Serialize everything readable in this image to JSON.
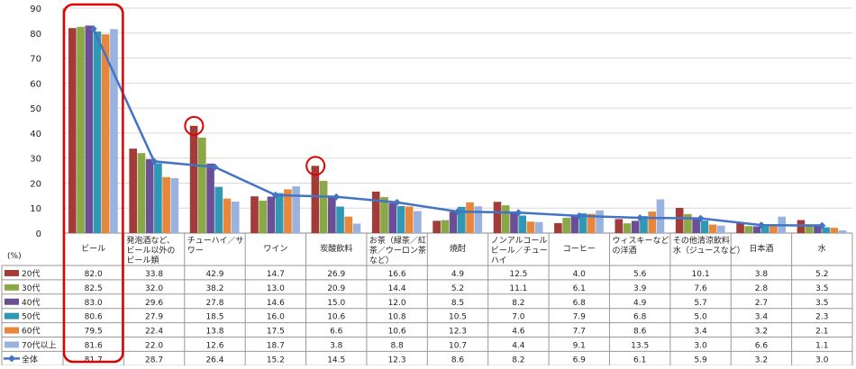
{
  "chart_data": {
    "type": "bar",
    "y_unit_label": "(%)",
    "ylim": [
      0,
      90
    ],
    "y_ticks": [
      "0",
      "10",
      "20",
      "30",
      "40",
      "50",
      "60",
      "70",
      "80",
      "90"
    ],
    "grid": true,
    "legend_placement": "left, in data table",
    "categories": [
      "ビール",
      "発泡酒など、ビール以外のビール類",
      "チューハイ／サワー",
      "ワイン",
      "炭酸飲料",
      "お茶（緑茶／紅茶／ウーロン茶など）",
      "焼酎",
      "ノンアルコールビール／チューハイ",
      "コーヒー",
      "ウィスキーなどの洋酒",
      "その他清涼飲料水（ジュースなど）",
      "日本酒",
      "水"
    ],
    "category_lines": [
      [
        "ビール"
      ],
      [
        "発泡酒など、",
        "ビール以外の",
        "ビール類"
      ],
      [
        "チューハイ／サ",
        "ワー"
      ],
      [
        "ワイン"
      ],
      [
        "炭酸飲料"
      ],
      [
        "お茶（緑茶／紅",
        "茶／ウーロン茶",
        "など）"
      ],
      [
        "焼酎"
      ],
      [
        "ノンアルコール",
        "ビール／チュー",
        "ハイ"
      ],
      [
        "コーヒー"
      ],
      [
        "ウィスキーなど",
        "の洋酒"
      ],
      [
        "その他清涼飲料",
        "水（ジュースなど）"
      ],
      [
        "日本酒"
      ],
      [
        "水"
      ]
    ],
    "series": [
      {
        "name": "20代",
        "color": "#a33b38",
        "values": [
          82.0,
          33.8,
          42.9,
          14.7,
          26.9,
          16.6,
          4.9,
          12.5,
          4.0,
          5.6,
          10.1,
          3.8,
          5.2
        ],
        "labels": [
          "82.0",
          "33.8",
          "42.9",
          "14.7",
          "26.9",
          "16.6",
          "4.9",
          "12.5",
          "4.0",
          "5.6",
          "10.1",
          "3.8",
          "5.2"
        ]
      },
      {
        "name": "30代",
        "color": "#8aa846",
        "values": [
          82.5,
          32.0,
          38.2,
          13.0,
          20.9,
          14.4,
          5.2,
          11.1,
          6.1,
          3.9,
          7.6,
          2.8,
          3.5
        ],
        "labels": [
          "82.5",
          "32.0",
          "38.2",
          "13.0",
          "20.9",
          "14.4",
          "5.2",
          "11.1",
          "6.1",
          "3.9",
          "7.6",
          "2.8",
          "3.5"
        ]
      },
      {
        "name": "40代",
        "color": "#6b4f96",
        "values": [
          83.0,
          29.6,
          27.8,
          14.6,
          15.0,
          12.0,
          8.5,
          8.2,
          6.8,
          4.9,
          5.7,
          2.7,
          3.5
        ],
        "labels": [
          "83.0",
          "29.6",
          "27.8",
          "14.6",
          "15.0",
          "12.0",
          "8.5",
          "8.2",
          "6.8",
          "4.9",
          "5.7",
          "2.7",
          "3.5"
        ]
      },
      {
        "name": "50代",
        "color": "#2f98b5",
        "values": [
          80.6,
          27.9,
          18.5,
          16.0,
          10.6,
          10.8,
          10.5,
          7.0,
          7.9,
          6.8,
          5.0,
          3.4,
          2.3
        ],
        "labels": [
          "80.6",
          "27.9",
          "18.5",
          "16.0",
          "10.6",
          "10.8",
          "10.5",
          "7.0",
          "7.9",
          "6.8",
          "5.0",
          "3.4",
          "2.3"
        ]
      },
      {
        "name": "60代",
        "color": "#e8863a",
        "values": [
          79.5,
          22.4,
          13.8,
          17.5,
          6.6,
          10.6,
          12.3,
          4.6,
          7.7,
          8.6,
          3.4,
          3.2,
          2.1
        ],
        "labels": [
          "79.5",
          "22.4",
          "13.8",
          "17.5",
          "6.6",
          "10.6",
          "12.3",
          "4.6",
          "7.7",
          "8.6",
          "3.4",
          "3.2",
          "2.1"
        ]
      },
      {
        "name": "70代以上",
        "color": "#99b3de",
        "values": [
          81.6,
          22.0,
          12.6,
          18.7,
          3.8,
          8.8,
          10.7,
          4.4,
          9.1,
          13.5,
          3.0,
          6.6,
          1.1
        ],
        "labels": [
          "81.6",
          "22.0",
          "12.6",
          "18.7",
          "3.8",
          "8.8",
          "10.7",
          "4.4",
          "9.1",
          "13.5",
          "3.0",
          "6.6",
          "1.1"
        ]
      }
    ],
    "line_series": {
      "name": "全体",
      "color": "#4472c4",
      "values": [
        81.7,
        28.7,
        26.4,
        15.2,
        14.5,
        12.3,
        8.6,
        8.2,
        6.9,
        6.1,
        5.9,
        3.2,
        3.0
      ],
      "labels": [
        "81.7",
        "28.7",
        "26.4",
        "15.2",
        "14.5",
        "12.3",
        "8.6",
        "8.2",
        "6.9",
        "6.1",
        "5.9",
        "3.2",
        "3.0"
      ]
    },
    "highlight_color": "#e00000"
  }
}
